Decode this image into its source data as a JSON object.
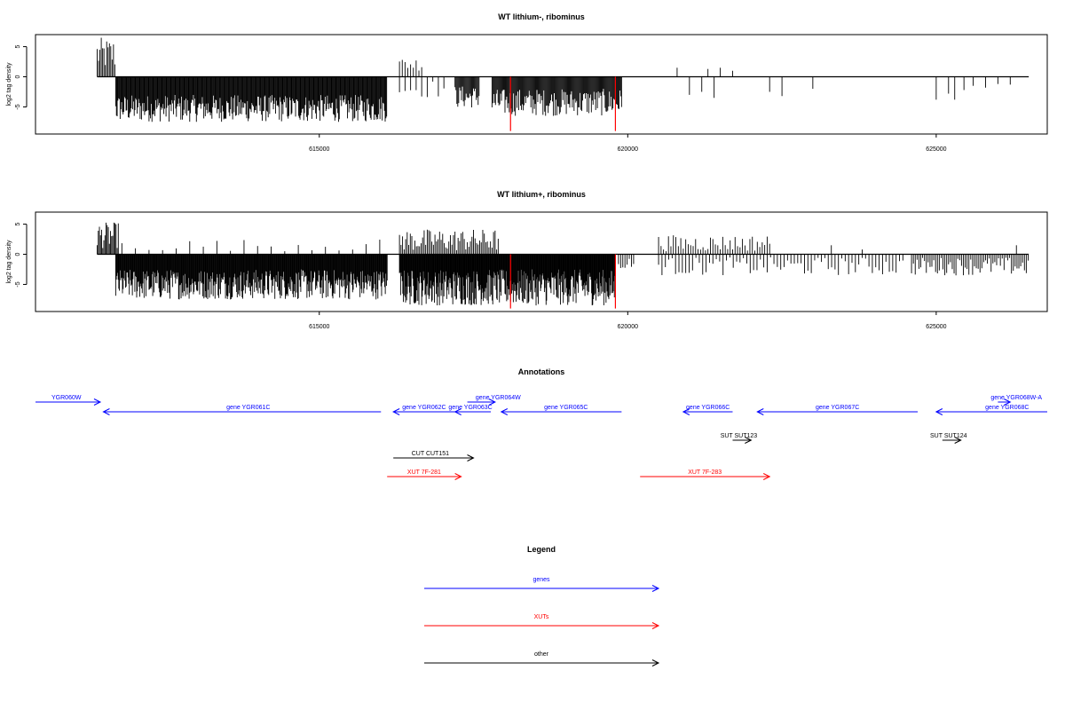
{
  "chart_data": [
    {
      "type": "bar",
      "title": "WT lithium-, ribominus",
      "ylabel": "log2 tag density",
      "ylim": [
        -9.5,
        7
      ],
      "yticks": [
        -5,
        0,
        5
      ],
      "xlim": [
        610400,
        626800
      ],
      "xticks": [
        615000,
        620000,
        625000
      ],
      "regions": [
        {
          "start": 611400,
          "end": 611700,
          "min": 1,
          "max": 6.5,
          "step": 22
        },
        {
          "start": 611700,
          "end": 616100,
          "min": -7.5,
          "max": -3,
          "step": 12
        },
        {
          "start": 616300,
          "end": 616700,
          "min": 1,
          "max": 3.2,
          "step": 45
        },
        {
          "start": 616300,
          "end": 617100,
          "min": -3.5,
          "max": -0.5,
          "step": 90
        },
        {
          "start": 617200,
          "end": 617600,
          "min": -5.2,
          "max": -1.5,
          "step": 15
        },
        {
          "start": 617800,
          "end": 619900,
          "min": -6.5,
          "max": -2,
          "step": 14
        }
      ],
      "points": [
        {
          "x": 620800,
          "y": 1.5
        },
        {
          "x": 621500,
          "y": 1.5
        },
        {
          "x": 621300,
          "y": 1.3
        },
        {
          "x": 621700,
          "y": 1.0
        },
        {
          "x": 621000,
          "y": -3.0
        },
        {
          "x": 621200,
          "y": -2.5
        },
        {
          "x": 621400,
          "y": -3.5
        },
        {
          "x": 622300,
          "y": -2.5
        },
        {
          "x": 622500,
          "y": -3.2
        },
        {
          "x": 623000,
          "y": -2.0
        },
        {
          "x": 625000,
          "y": -3.8
        },
        {
          "x": 625200,
          "y": -2.8
        },
        {
          "x": 625300,
          "y": -3.8
        },
        {
          "x": 625450,
          "y": -2.2
        },
        {
          "x": 625600,
          "y": -1.5
        },
        {
          "x": 625800,
          "y": -1.8
        },
        {
          "x": 626000,
          "y": -1.2
        },
        {
          "x": 626200,
          "y": -1.3
        }
      ],
      "highlights": [
        {
          "x": 618100,
          "y": -9.0,
          "color": "#ff0000"
        },
        {
          "x": 619800,
          "y": -9.0,
          "color": "#ff0000"
        }
      ]
    },
    {
      "type": "bar",
      "title": "WT lithium+, ribominus",
      "ylabel": "log2 tag density",
      "ylim": [
        -9.5,
        7
      ],
      "yticks": [
        -5,
        0,
        5
      ],
      "xlim": [
        610400,
        626800
      ],
      "xticks": [
        615000,
        620000,
        625000
      ],
      "regions": [
        {
          "start": 611400,
          "end": 611750,
          "min": 1,
          "max": 5.3,
          "step": 18
        },
        {
          "start": 611700,
          "end": 616100,
          "min": -7.5,
          "max": -2.5,
          "step": 10
        },
        {
          "start": 611800,
          "end": 616000,
          "min": 0.5,
          "max": 2.5,
          "step": 220
        },
        {
          "start": 616300,
          "end": 617900,
          "min": 0.5,
          "max": 4.2,
          "step": 25
        },
        {
          "start": 616300,
          "end": 619800,
          "min": -8.5,
          "max": -2.5,
          "step": 9
        },
        {
          "start": 619850,
          "end": 620100,
          "min": -2.5,
          "max": -0.5,
          "step": 35
        },
        {
          "start": 620500,
          "end": 622300,
          "min": 0.5,
          "max": 3.2,
          "step": 40
        },
        {
          "start": 620500,
          "end": 624500,
          "min": -3.5,
          "max": -0.5,
          "step": 55
        },
        {
          "start": 624600,
          "end": 626500,
          "min": -3.5,
          "max": -0.5,
          "step": 30
        }
      ],
      "points": [
        {
          "x": 626300,
          "y": 1.5
        },
        {
          "x": 623300,
          "y": 1.5
        },
        {
          "x": 623800,
          "y": 0.8
        }
      ],
      "highlights": [
        {
          "x": 618100,
          "y": -9.0,
          "color": "#ff0000"
        },
        {
          "x": 619800,
          "y": -9.0,
          "color": "#ff0000"
        }
      ]
    }
  ],
  "annotations": {
    "title": "Annotations",
    "colors": {
      "gene": "#0000ff",
      "xut": "#ff0000",
      "other": "#000000"
    },
    "features": [
      {
        "label": "YGR060W",
        "kind": "gene",
        "strand": "+",
        "start": 610400,
        "end": 611450,
        "lane": 0,
        "label_at": 610900
      },
      {
        "label": "gene YGR061C",
        "kind": "gene",
        "strand": "-",
        "start": 611500,
        "end": 616000,
        "lane": 1,
        "label_at": 613850
      },
      {
        "label": "gene YGR062C",
        "kind": "gene",
        "strand": "-",
        "start": 616200,
        "end": 617300,
        "lane": 1,
        "label_at": 616700
      },
      {
        "label": "gene YGR063C",
        "kind": "gene",
        "strand": "-",
        "start": 617200,
        "end": 617780,
        "lane": 1,
        "label_at": 617450
      },
      {
        "label": "gene YGR064W",
        "kind": "gene",
        "strand": "+",
        "start": 617400,
        "end": 617850,
        "lane": 0,
        "label_at": 617900
      },
      {
        "label": "gene YGR065C",
        "kind": "gene",
        "strand": "-",
        "start": 617950,
        "end": 619900,
        "lane": 1,
        "label_at": 619000
      },
      {
        "label": "gene YGR066C",
        "kind": "gene",
        "strand": "-",
        "start": 620900,
        "end": 621700,
        "lane": 1,
        "label_at": 621300
      },
      {
        "label": "gene YGR067C",
        "kind": "gene",
        "strand": "-",
        "start": 622100,
        "end": 624700,
        "lane": 1,
        "label_at": 623400
      },
      {
        "label": "gene YGR068W-A",
        "kind": "gene",
        "strand": "+",
        "start": 626000,
        "end": 626200,
        "lane": 0,
        "label_at": 626300
      },
      {
        "label": "gene YGR068C",
        "kind": "gene",
        "strand": "-",
        "start": 625000,
        "end": 626800,
        "lane": 1,
        "label_at": 626150
      },
      {
        "label": "SUT SUT123",
        "kind": "other",
        "strand": "+",
        "start": 621700,
        "end": 622000,
        "lane": 2,
        "label_at": 621800
      },
      {
        "label": "SUT SUT124",
        "kind": "other",
        "strand": "+",
        "start": 625100,
        "end": 625400,
        "lane": 2,
        "label_at": 625200
      },
      {
        "label": "CUT CUT151",
        "kind": "other",
        "strand": "+",
        "start": 616200,
        "end": 617500,
        "lane": 3,
        "label_at": 616800
      },
      {
        "label": "XUT 7F-281",
        "kind": "xut",
        "strand": "+",
        "start": 616100,
        "end": 617300,
        "lane": 4,
        "label_at": 616700
      },
      {
        "label": "XUT 7F-283",
        "kind": "xut",
        "strand": "+",
        "start": 620200,
        "end": 622300,
        "lane": 4,
        "label_at": 621250
      }
    ]
  },
  "legend": {
    "title": "Legend",
    "items": [
      {
        "label": "genes",
        "color": "#0000ff"
      },
      {
        "label": "XUTs",
        "color": "#ff0000"
      },
      {
        "label": "other",
        "color": "#000000"
      }
    ]
  }
}
